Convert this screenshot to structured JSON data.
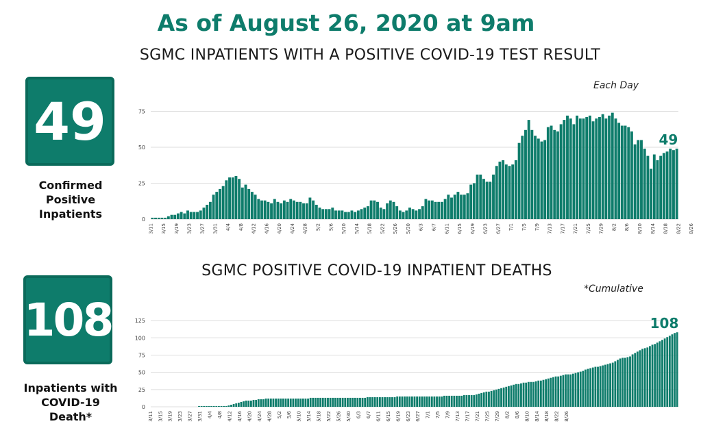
{
  "headline": "As of August 26, 2020 at 9am",
  "panels": [
    {
      "big_number": "49",
      "caption_lines": [
        "Confirmed",
        "Positive",
        "Inpatients"
      ],
      "subtitle": "SGMC INPATIENTS WITH A POSITIVE COVID-19 TEST RESULT",
      "note": "Each Day"
    },
    {
      "big_number": "108",
      "caption_lines": [
        "Inpatients with",
        "COVID-19",
        "Death*"
      ],
      "subtitle": "SGMC POSITIVE COVID-19 INPATIENT DEATHS",
      "note": "*Cumulative"
    }
  ],
  "colors": {
    "accent": "#0e7c6b",
    "bar": "#0e7c6b",
    "grid": "#dddddd"
  },
  "chart_data": [
    {
      "type": "bar",
      "title": "SGMC INPATIENTS WITH A POSITIVE COVID-19 TEST RESULT",
      "ylim": [
        0,
        80
      ],
      "yticks": [
        0,
        25,
        50,
        75
      ],
      "grid": true,
      "start_date": "2020-03-11",
      "x_tick_labels": [
        "3/11",
        "3/15",
        "3/19",
        "3/23",
        "3/27",
        "3/31",
        "4/4",
        "4/8",
        "4/12",
        "4/16",
        "4/20",
        "4/24",
        "4/28",
        "5/2",
        "5/6",
        "5/10",
        "5/14",
        "5/18",
        "5/22",
        "5/26",
        "5/30",
        "6/3",
        "6/7",
        "6/11",
        "6/15",
        "6/19",
        "6/23",
        "6/27",
        "7/1",
        "7/5",
        "7/9",
        "7/13",
        "7/17",
        "7/21",
        "7/25",
        "7/29",
        "8/2",
        "8/6",
        "8/10",
        "8/14",
        "8/18",
        "8/22",
        "8/26"
      ],
      "values": [
        1,
        1,
        1,
        1,
        1,
        2,
        3,
        3,
        4,
        5,
        4,
        6,
        5,
        5,
        5,
        6,
        8,
        10,
        12,
        17,
        19,
        21,
        23,
        27,
        29,
        29,
        30,
        28,
        22,
        24,
        21,
        19,
        17,
        14,
        13,
        13,
        12,
        11,
        14,
        12,
        11,
        13,
        12,
        14,
        13,
        12,
        12,
        11,
        11,
        15,
        13,
        10,
        8,
        7,
        7,
        7,
        8,
        6,
        6,
        6,
        5,
        5,
        6,
        5,
        6,
        7,
        8,
        9,
        13,
        13,
        12,
        8,
        7,
        11,
        13,
        12,
        9,
        6,
        5,
        6,
        8,
        7,
        6,
        7,
        9,
        14,
        13,
        13,
        12,
        12,
        12,
        14,
        17,
        15,
        17,
        19,
        17,
        17,
        18,
        24,
        25,
        31,
        31,
        28,
        26,
        26,
        31,
        37,
        40,
        41,
        38,
        37,
        38,
        41,
        53,
        58,
        62,
        69,
        62,
        58,
        56,
        54,
        55,
        64,
        65,
        62,
        61,
        66,
        69,
        72,
        70,
        66,
        72,
        70,
        70,
        71,
        72,
        68,
        70,
        71,
        73,
        70,
        72,
        74,
        70,
        67,
        65,
        65,
        64,
        61,
        52,
        55,
        55,
        49,
        44,
        35,
        45,
        41,
        44,
        46,
        47,
        49,
        48,
        49
      ],
      "end_label": "49"
    },
    {
      "type": "bar",
      "title": "SGMC POSITIVE COVID-19 INPATIENT DEATHS",
      "ylim": [
        0,
        135
      ],
      "yticks": [
        0,
        25,
        50,
        75,
        100,
        125
      ],
      "grid": true,
      "start_date": "2020-03-11",
      "x_tick_labels": [
        "3/11",
        "3/15",
        "3/19",
        "3/23",
        "3/27",
        "3/31",
        "4/4",
        "4/8",
        "4/12",
        "4/16",
        "4/20",
        "4/24",
        "4/28",
        "5/2",
        "5/6",
        "5/10",
        "5/14",
        "5/18",
        "5/22",
        "5/26",
        "5/30",
        "6/3",
        "6/7",
        "6/11",
        "6/15",
        "6/19",
        "6/23",
        "6/27",
        "7/1",
        "7/5",
        "7/9",
        "7/13",
        "7/17",
        "7/21",
        "7/25",
        "7/29",
        "8/2",
        "8/6",
        "8/10",
        "8/14",
        "8/18",
        "8/22",
        "8/26"
      ],
      "values": [
        0,
        0,
        0,
        0,
        0,
        0,
        0,
        0,
        0,
        0,
        0,
        0,
        0,
        0,
        0,
        0,
        0,
        0,
        0,
        1,
        1,
        1,
        1,
        1,
        1,
        1,
        1,
        1,
        1,
        1,
        1,
        2,
        3,
        4,
        5,
        6,
        7,
        8,
        9,
        9,
        9,
        10,
        10,
        11,
        11,
        11,
        12,
        12,
        12,
        12,
        12,
        12,
        12,
        12,
        12,
        12,
        12,
        12,
        12,
        12,
        12,
        12,
        12,
        12,
        13,
        13,
        13,
        13,
        13,
        13,
        13,
        13,
        13,
        13,
        13,
        13,
        13,
        13,
        13,
        13,
        13,
        13,
        13,
        13,
        13,
        13,
        13,
        14,
        14,
        14,
        14,
        14,
        14,
        14,
        14,
        14,
        14,
        14,
        14,
        15,
        15,
        15,
        15,
        15,
        15,
        15,
        15,
        15,
        15,
        15,
        15,
        15,
        15,
        15,
        15,
        15,
        15,
        15,
        16,
        16,
        16,
        16,
        16,
        16,
        16,
        16,
        17,
        17,
        17,
        17,
        17,
        18,
        19,
        20,
        21,
        22,
        22,
        23,
        24,
        25,
        26,
        27,
        28,
        29,
        30,
        31,
        32,
        33,
        33,
        34,
        35,
        35,
        36,
        36,
        36,
        37,
        38,
        38,
        39,
        40,
        41,
        42,
        43,
        44,
        44,
        45,
        46,
        47,
        47,
        47,
        48,
        49,
        50,
        51,
        52,
        54,
        55,
        56,
        57,
        58,
        58,
        59,
        60,
        61,
        62,
        63,
        64,
        66,
        68,
        70,
        71,
        71,
        72,
        73,
        76,
        78,
        80,
        82,
        84,
        85,
        86,
        88,
        90,
        91,
        93,
        95,
        97,
        99,
        101,
        103,
        105,
        107,
        108
      ],
      "end_label": "108"
    }
  ]
}
